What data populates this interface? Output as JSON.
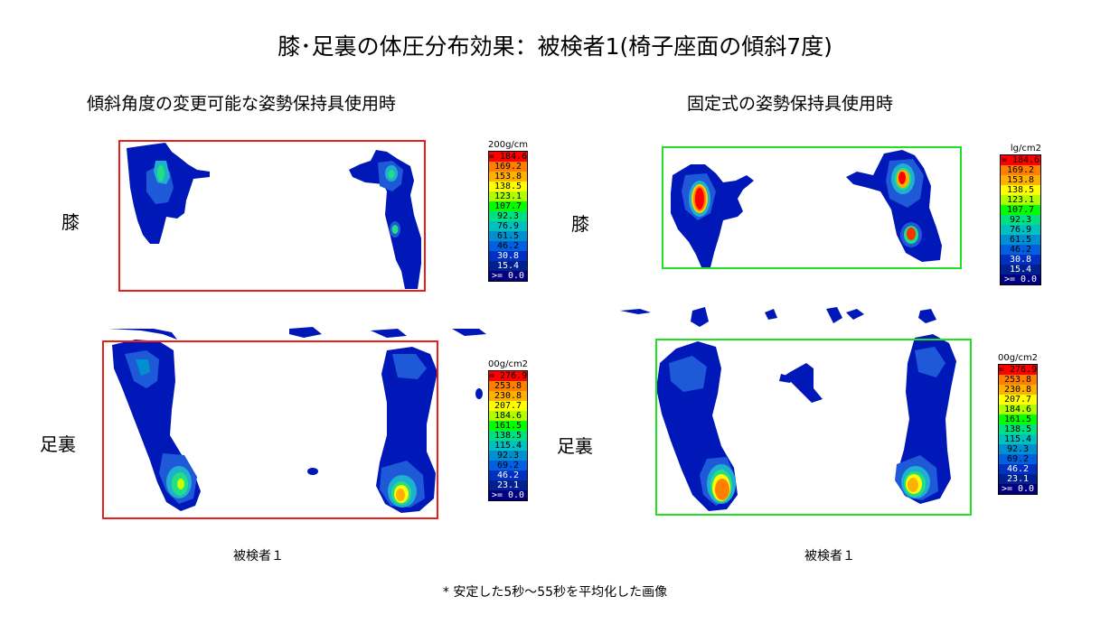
{
  "title": "膝･足裏の体圧分布効果：被検者1(椅子座面の傾斜7度)",
  "left_panel": {
    "heading": "傾斜角度の変更可能な姿勢保持具使用時",
    "caption": "被検者１"
  },
  "right_panel": {
    "heading": "固定式の姿勢保持具使用時",
    "caption": "被検者１"
  },
  "row_labels": {
    "knee": "膝",
    "sole": "足裏"
  },
  "legends": {
    "knee_left": {
      "unit": "200g/cm2",
      "values": [
        "= 184.6",
        "169.2",
        "153.8",
        "138.5",
        "123.1",
        "107.7",
        "92.3",
        "76.9",
        "61.5",
        "46.2",
        "30.8",
        "15.4",
        ">= 0.0"
      ]
    },
    "knee_right": {
      "unit": "lg/cm2",
      "values": [
        "= 184.6",
        "169.2",
        "153.8",
        "138.5",
        "123.1",
        "107.7",
        "92.3",
        "76.9",
        "61.5",
        "46.2",
        "30.8",
        "15.4",
        ">= 0.0"
      ]
    },
    "sole_left": {
      "unit": "00g/cm2",
      "values": [
        "= 276.9",
        "253.8",
        "230.8",
        "207.7",
        "184.6",
        "161.5",
        "138.5",
        "115.4",
        "92.3",
        "69.2",
        "46.2",
        "23.1",
        ">= 0.0"
      ]
    },
    "sole_right": {
      "unit": "00g/cm2",
      "values": [
        "= 276.9",
        "253.8",
        "230.8",
        "207.7",
        "184.6",
        "161.5",
        "138.5",
        "115.4",
        "92.3",
        "69.2",
        "46.2",
        "23.1",
        ">= 0.0"
      ]
    }
  },
  "legend_colors": [
    "#ff0000",
    "#ff8000",
    "#ffb000",
    "#ffff00",
    "#b0ff00",
    "#00ff00",
    "#00e080",
    "#00c0c0",
    "#0090d0",
    "#0060e0",
    "#0030c0",
    "#002090",
    "#000080"
  ],
  "frame_colors": {
    "left": "#e8201c",
    "right": "#22e022"
  },
  "footnote": "* 安定した5秒～55秒を平均化した画像"
}
